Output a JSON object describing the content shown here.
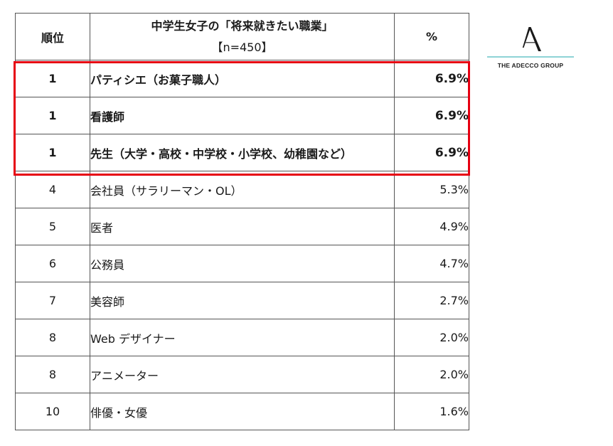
{
  "table": {
    "header": {
      "rank": "順位",
      "job_title": "中学生女子の「将来就きたい職業」",
      "job_sample": "【n=450】",
      "percent": "%"
    },
    "rows": [
      {
        "rank": "1",
        "job": "パティシエ（お菓子職人）",
        "percent": "6.9%"
      },
      {
        "rank": "1",
        "job": "看護師",
        "percent": "6.9%"
      },
      {
        "rank": "1",
        "job": "先生（大学・高校・中学校・小学校、幼稚園など）",
        "percent": "6.9%"
      },
      {
        "rank": "4",
        "job": "会社員（サラリーマン・OL）",
        "percent": "5.3%"
      },
      {
        "rank": "5",
        "job": "医者",
        "percent": "4.9%"
      },
      {
        "rank": "6",
        "job": "公務員",
        "percent": "4.7%"
      },
      {
        "rank": "7",
        "job": "美容師",
        "percent": "2.7%"
      },
      {
        "rank": "8",
        "job": "Web デザイナー",
        "percent": "2.0%"
      },
      {
        "rank": "8",
        "job": "アニメーター",
        "percent": "2.0%"
      },
      {
        "rank": "10",
        "job": "俳優・女優",
        "percent": "1.6%"
      }
    ]
  },
  "highlight": {
    "color": "#e60012"
  },
  "logo": {
    "text": "THE ADECCO GROUP",
    "icon": "adecco-a-logo-icon",
    "rule_color": "#8ed3d6"
  }
}
